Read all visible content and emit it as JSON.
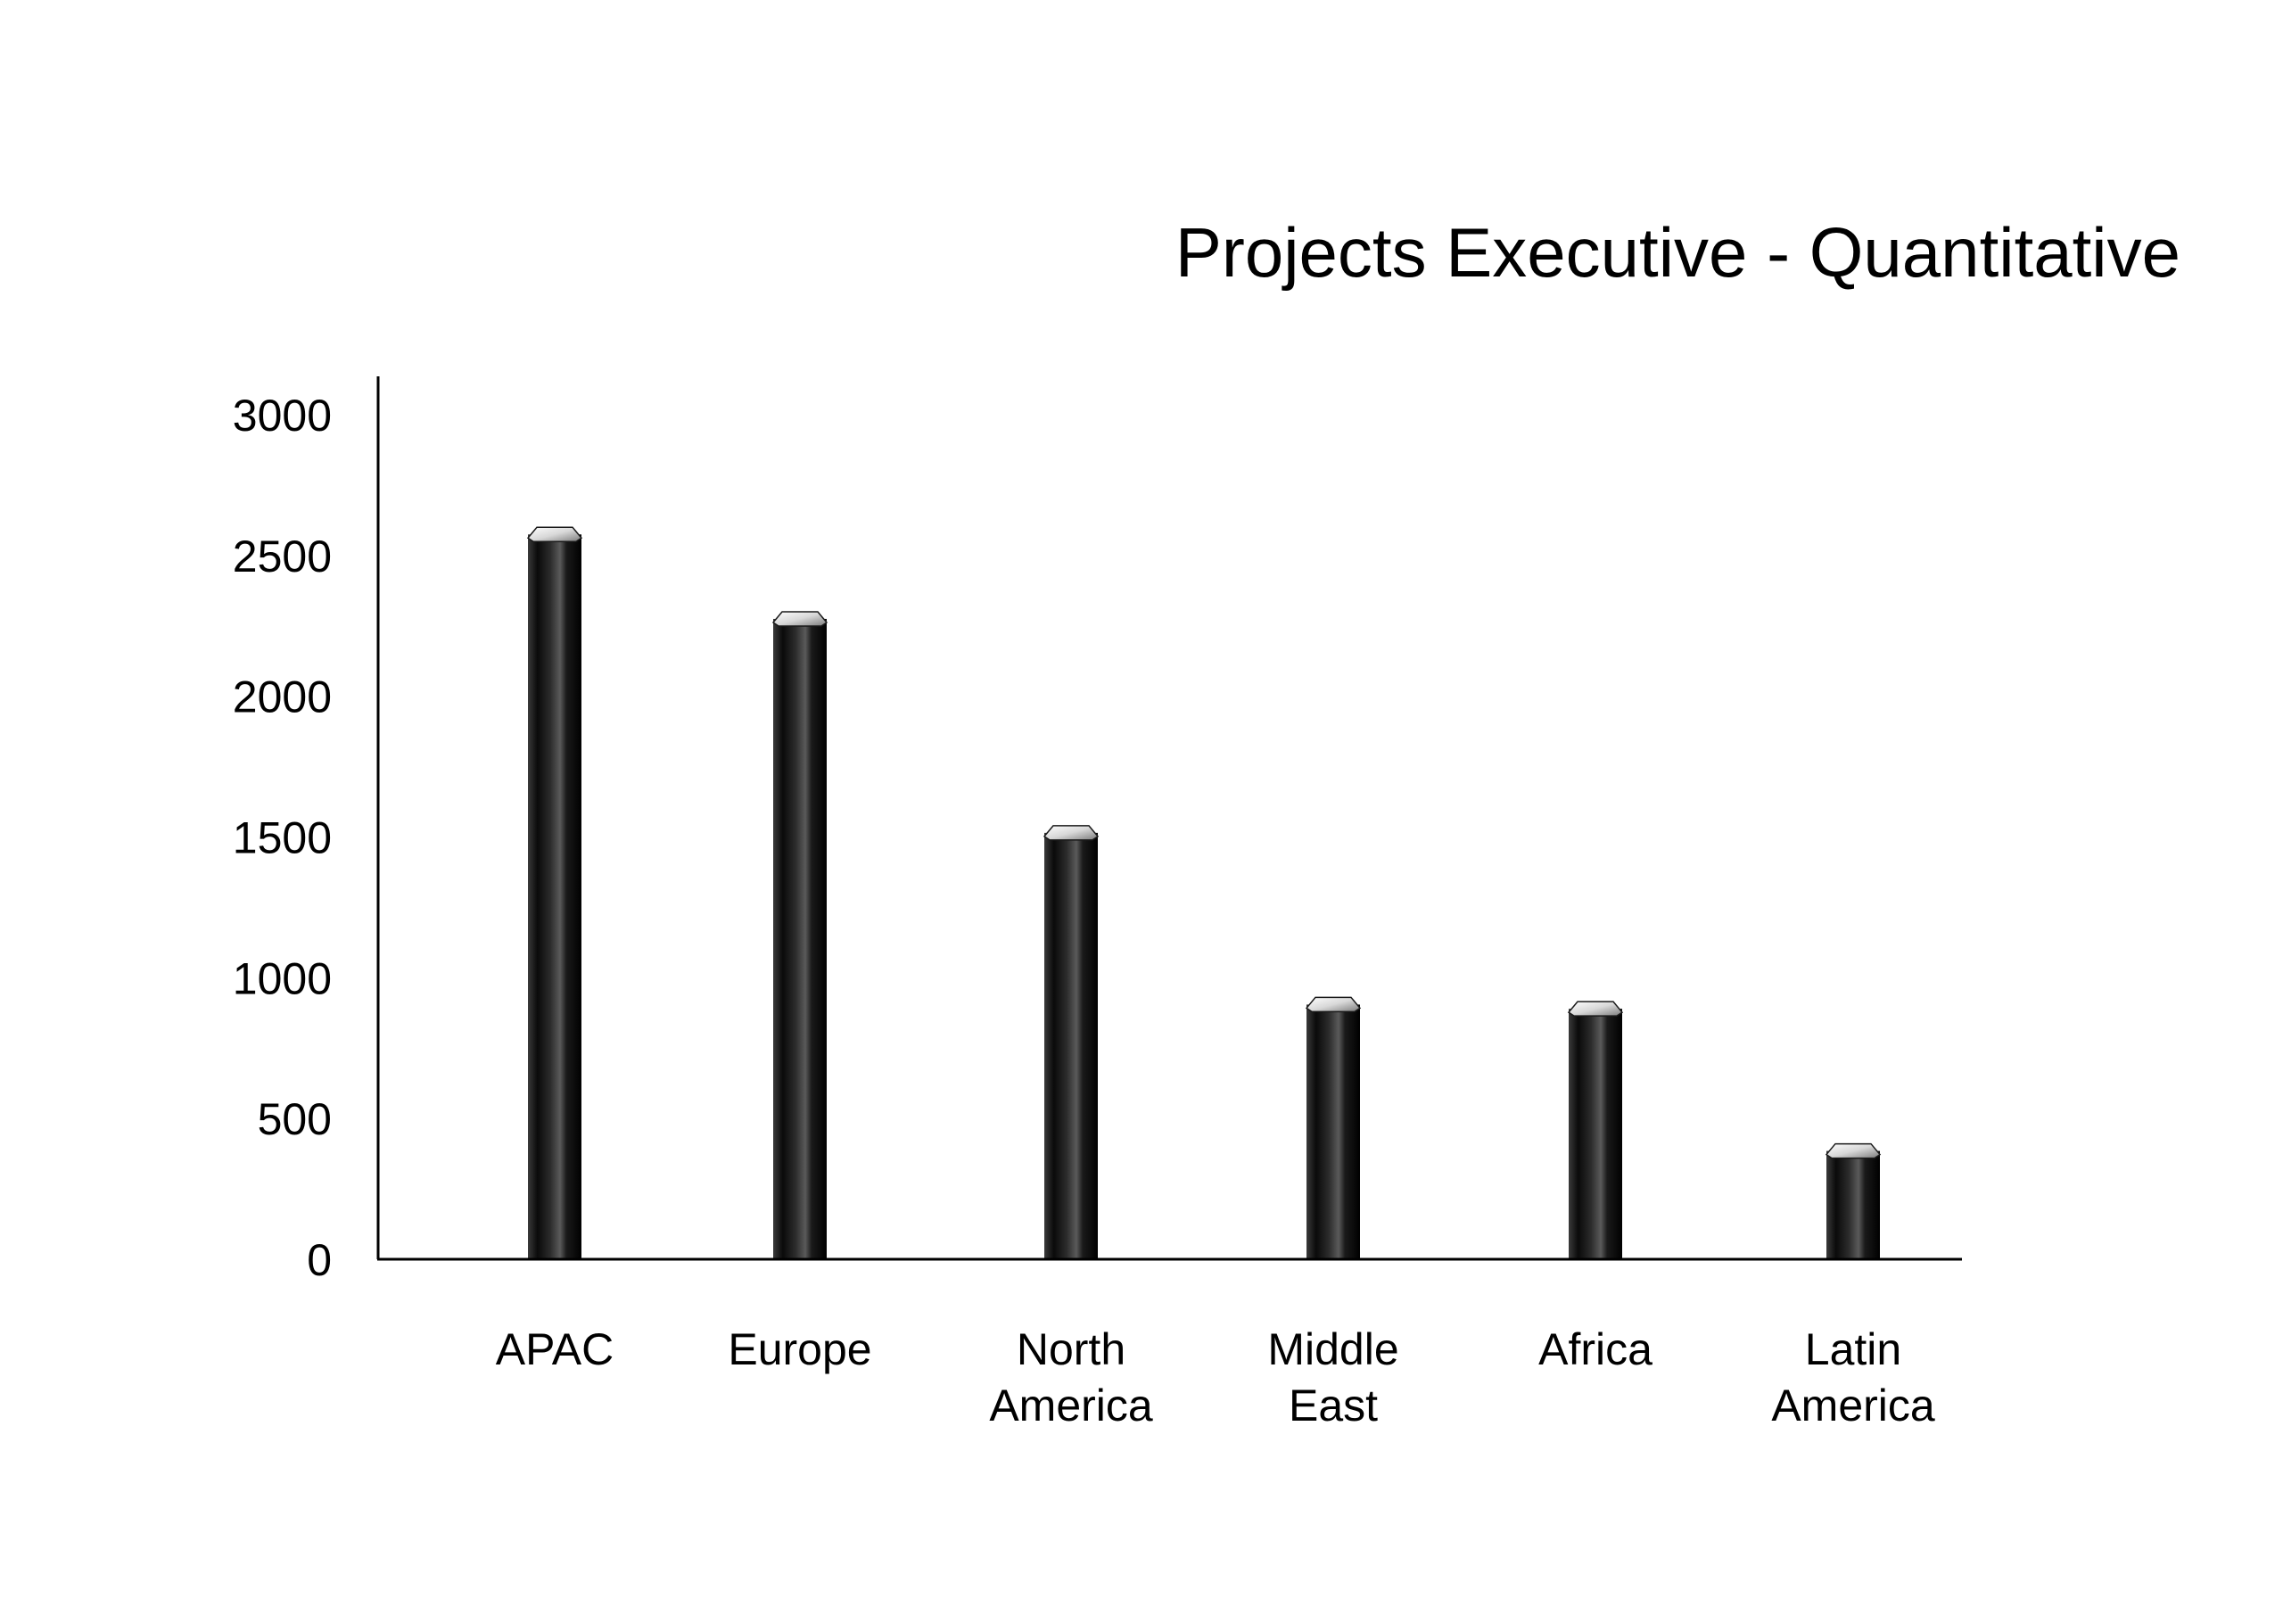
{
  "chart_data": {
    "type": "bar",
    "title": "Projects Executive - Quantitative",
    "xlabel": "",
    "ylabel": "",
    "categories": [
      [
        "APAC"
      ],
      [
        "Europe"
      ],
      [
        "North",
        "America"
      ],
      [
        "Middle",
        "East"
      ],
      [
        "Africa"
      ],
      [
        "Latin",
        "America"
      ]
    ],
    "values": [
      2600,
      2300,
      1540,
      930,
      915,
      410
    ],
    "yticks": [
      "0",
      "500",
      "1000",
      "1500",
      "2000",
      "2500",
      "3000"
    ],
    "ylim": [
      0,
      3000
    ],
    "grid": false,
    "legend": "none",
    "colors": {
      "bar_dark": "#0a0a0a",
      "bar_mid": "#2a2a2a",
      "bar_light": "#555555",
      "cap_light": "#ffffff",
      "cap_dark": "#8a8a8a",
      "axis": "#000000"
    }
  }
}
